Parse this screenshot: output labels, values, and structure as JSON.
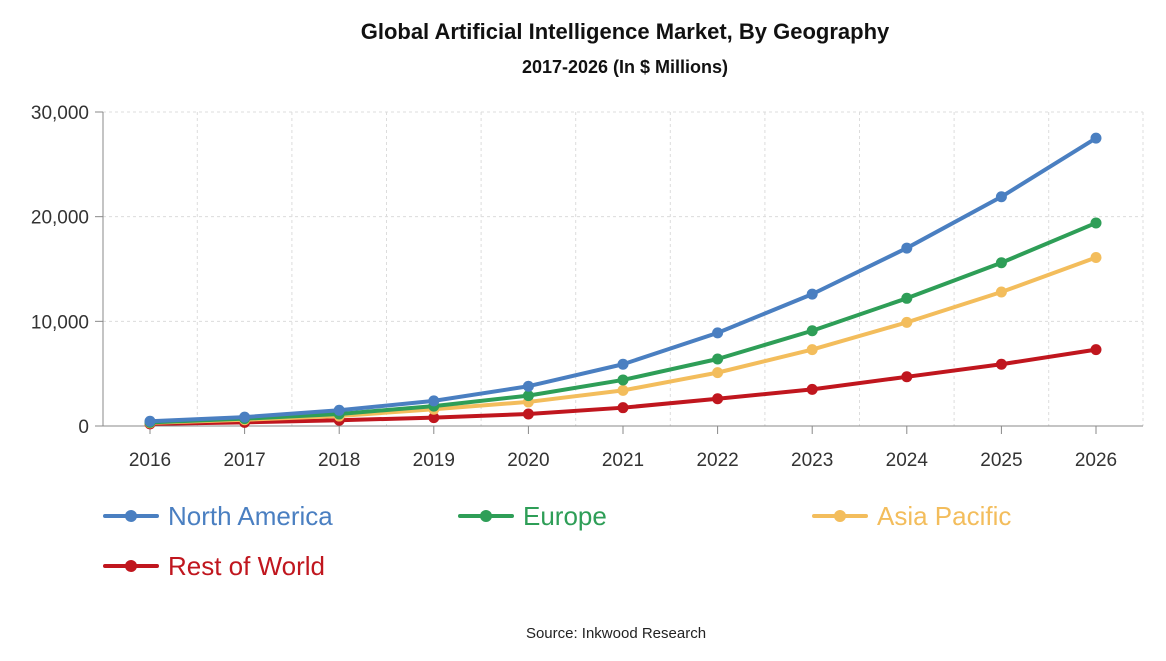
{
  "chart_data": {
    "type": "line",
    "title": "Global Artificial Intelligence Market, By Geography",
    "subtitle": "2017-2026 (In $ Millions)",
    "xlabel": "",
    "ylabel": "",
    "x": [
      "2016",
      "2017",
      "2018",
      "2019",
      "2020",
      "2021",
      "2022",
      "2023",
      "2024",
      "2025",
      "2026"
    ],
    "ylim": [
      0,
      30000
    ],
    "yticks": [
      0,
      10000,
      20000,
      30000
    ],
    "ytick_labels": [
      "0",
      "10,000",
      "20,000",
      "30,000"
    ],
    "grid": true,
    "legend_position": "bottom",
    "series": [
      {
        "name": "North America",
        "color": "#4a7fc1",
        "values": [
          450,
          850,
          1500,
          2400,
          3800,
          5900,
          8900,
          12600,
          17000,
          21900,
          27500
        ]
      },
      {
        "name": "Europe",
        "color": "#2e9e57",
        "values": [
          350,
          700,
          1150,
          1900,
          2900,
          4400,
          6400,
          9100,
          12200,
          15600,
          19400
        ]
      },
      {
        "name": "Asia Pacific",
        "color": "#f3bd5c",
        "values": [
          300,
          600,
          950,
          1600,
          2300,
          3400,
          5100,
          7300,
          9900,
          12800,
          16100
        ]
      },
      {
        "name": "Rest of World",
        "color": "#c0161e",
        "values": [
          200,
          350,
          550,
          800,
          1150,
          1750,
          2600,
          3500,
          4700,
          5900,
          7300
        ]
      }
    ]
  },
  "source": "Source: Inkwood Research"
}
